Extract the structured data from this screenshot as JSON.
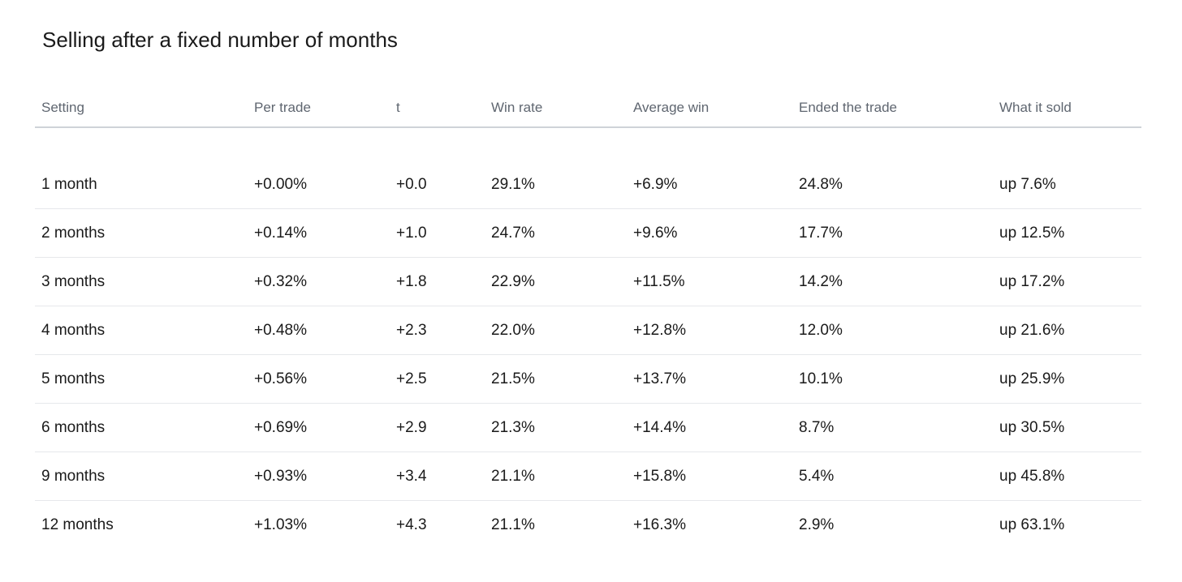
{
  "title": "Selling after a fixed number of months",
  "table": {
    "headers": [
      "Setting",
      "Per trade",
      "t",
      "Win rate",
      "Average win",
      "Ended the trade",
      "What it sold"
    ],
    "rows": [
      [
        "1 month",
        "+0.00%",
        "+0.0",
        "29.1%",
        "+6.9%",
        "24.8%",
        "up 7.6%"
      ],
      [
        "2 months",
        "+0.14%",
        "+1.0",
        "24.7%",
        "+9.6%",
        "17.7%",
        "up 12.5%"
      ],
      [
        "3 months",
        "+0.32%",
        "+1.8",
        "22.9%",
        "+11.5%",
        "14.2%",
        "up 17.2%"
      ],
      [
        "4 months",
        "+0.48%",
        "+2.3",
        "22.0%",
        "+12.8%",
        "12.0%",
        "up 21.6%"
      ],
      [
        "5 months",
        "+0.56%",
        "+2.5",
        "21.5%",
        "+13.7%",
        "10.1%",
        "up 25.9%"
      ],
      [
        "6 months",
        "+0.69%",
        "+2.9",
        "21.3%",
        "+14.4%",
        "8.7%",
        "up 30.5%"
      ],
      [
        "9 months",
        "+0.93%",
        "+3.4",
        "21.1%",
        "+15.8%",
        "5.4%",
        "up 45.8%"
      ],
      [
        "12 months",
        "+1.03%",
        "+4.3",
        "21.1%",
        "+16.3%",
        "2.9%",
        "up 63.1%"
      ]
    ]
  },
  "colors": {
    "per_trade": "#1c5f86",
    "sold": "#b5580f",
    "header_text": "#5f6670"
  }
}
